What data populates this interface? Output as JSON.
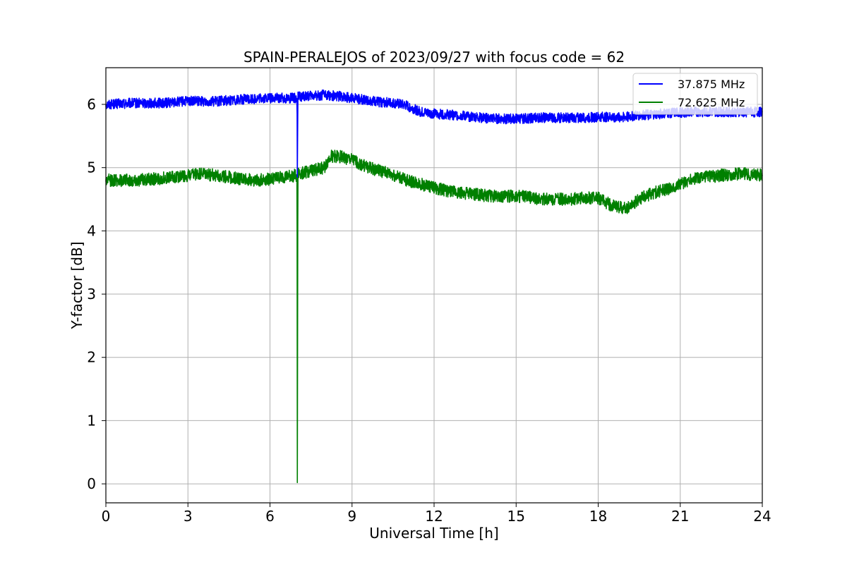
{
  "chart_data": {
    "type": "line",
    "title": "SPAIN-PERALEJOS of 2023/09/27 with focus code = 62",
    "xlabel": "Universal Time [h]",
    "ylabel": "Y-factor [dB]",
    "xlim": [
      0,
      24
    ],
    "ylim": [
      -0.3,
      6.58
    ],
    "xticks": [
      0,
      3,
      6,
      9,
      12,
      15,
      18,
      21,
      24
    ],
    "yticks": [
      0,
      1,
      2,
      3,
      4,
      5,
      6
    ],
    "grid": true,
    "legend_position": "top-right",
    "series": [
      {
        "name": "37.875 MHz",
        "color": "#0000ff",
        "noise_amplitude": 0.08,
        "x": [
          0,
          1,
          2,
          3,
          4,
          5,
          6,
          6.99,
          7.0,
          7.02,
          7.5,
          8,
          8.5,
          9,
          9.5,
          10,
          10.5,
          11,
          11.5,
          12,
          12.5,
          13,
          13.5,
          14,
          14.5,
          15,
          15.5,
          16,
          16.5,
          17,
          17.5,
          18,
          18.5,
          19,
          19.5,
          20,
          20.5,
          21,
          21.5,
          22,
          22.5,
          23,
          23.5,
          24
        ],
        "y": [
          6.0,
          6.02,
          6.02,
          6.05,
          6.05,
          6.08,
          6.1,
          6.1,
          4.85,
          6.12,
          6.13,
          6.15,
          6.13,
          6.1,
          6.07,
          6.04,
          6.02,
          5.98,
          5.88,
          5.85,
          5.84,
          5.82,
          5.8,
          5.78,
          5.77,
          5.77,
          5.78,
          5.79,
          5.79,
          5.79,
          5.79,
          5.8,
          5.8,
          5.8,
          5.83,
          5.84,
          5.86,
          5.87,
          5.88,
          5.88,
          5.88,
          5.88,
          5.88,
          5.88
        ]
      },
      {
        "name": "72.625 MHz",
        "color": "#008000",
        "noise_amplitude": 0.1,
        "x": [
          0,
          1,
          2,
          3,
          3.5,
          4,
          4.5,
          5,
          5.5,
          6,
          6.5,
          6.99,
          7.0,
          7.02,
          7.5,
          8,
          8.2,
          8.5,
          9,
          9.5,
          10,
          10.5,
          11,
          11.5,
          12,
          12.5,
          13,
          13.5,
          14,
          14.5,
          15,
          15.5,
          16,
          16.5,
          17,
          17.5,
          18,
          18.5,
          19,
          19.5,
          20,
          20.5,
          21,
          21.5,
          22,
          22.5,
          23,
          23.5,
          24
        ],
        "y": [
          4.8,
          4.8,
          4.83,
          4.87,
          4.9,
          4.88,
          4.85,
          4.82,
          4.8,
          4.82,
          4.85,
          4.88,
          0.02,
          4.9,
          4.95,
          5.0,
          5.18,
          5.18,
          5.12,
          5.02,
          4.95,
          4.88,
          4.8,
          4.74,
          4.68,
          4.63,
          4.6,
          4.58,
          4.55,
          4.55,
          4.55,
          4.53,
          4.5,
          4.5,
          4.5,
          4.52,
          4.52,
          4.4,
          4.35,
          4.5,
          4.6,
          4.65,
          4.75,
          4.82,
          4.85,
          4.88,
          4.9,
          4.9,
          4.88
        ]
      }
    ]
  }
}
